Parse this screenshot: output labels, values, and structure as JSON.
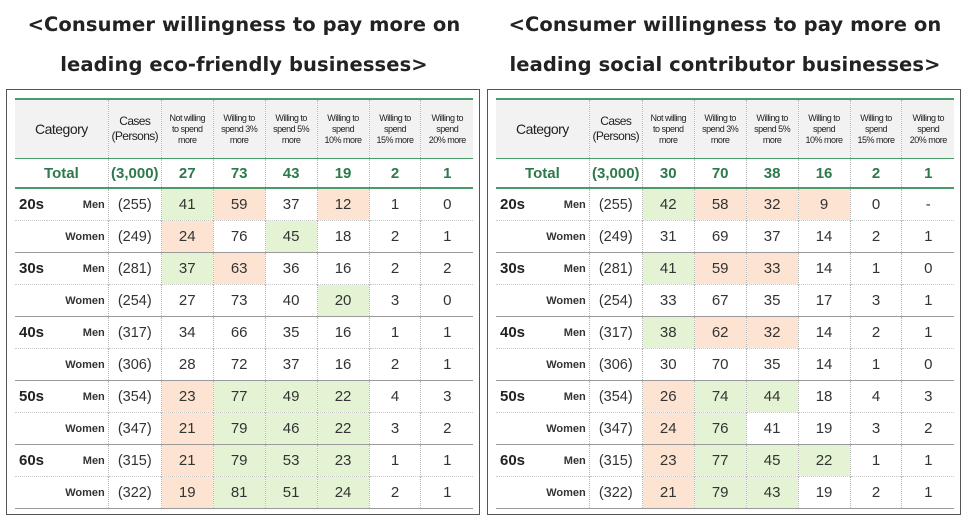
{
  "left": {
    "title_line1": "<Consumer willingness to pay more on",
    "title_line2": "leading eco-friendly businesses>",
    "headers": {
      "category": "Category",
      "cases_1": "Cases",
      "cases_2": "(Persons)",
      "col1": [
        "Not willing",
        "to spend",
        "more"
      ],
      "col2": [
        "Willing to",
        "spend 3%",
        "more"
      ],
      "col3": [
        "Willing to",
        "spend 5%",
        "more"
      ],
      "col4": [
        "Willing to",
        "spend",
        "10% more"
      ],
      "col5": [
        "Willing to",
        "spend",
        "15% more"
      ],
      "col6": [
        "Willing to",
        "spend",
        "20% more"
      ]
    },
    "total": {
      "label": "Total",
      "cases": "(3,000)",
      "values": [
        "27",
        "73",
        "43",
        "19",
        "2",
        "1"
      ]
    },
    "rows": [
      {
        "age": "20s",
        "sex": "Men",
        "cases": "(255)",
        "values": [
          "41",
          "59",
          "37",
          "12",
          "1",
          "0"
        ],
        "hl": [
          "g",
          "o",
          "",
          "o",
          "",
          ""
        ]
      },
      {
        "age": "",
        "sex": "Women",
        "cases": "(249)",
        "values": [
          "24",
          "76",
          "45",
          "18",
          "2",
          "1"
        ],
        "hl": [
          "o",
          "",
          "g",
          "",
          "",
          ""
        ]
      },
      {
        "age": "30s",
        "sex": "Men",
        "cases": "(281)",
        "values": [
          "37",
          "63",
          "36",
          "16",
          "2",
          "2"
        ],
        "hl": [
          "g",
          "o",
          "",
          "",
          "",
          ""
        ]
      },
      {
        "age": "",
        "sex": "Women",
        "cases": "(254)",
        "values": [
          "27",
          "73",
          "40",
          "20",
          "3",
          "0"
        ],
        "hl": [
          "",
          "",
          "",
          "g",
          "",
          ""
        ]
      },
      {
        "age": "40s",
        "sex": "Men",
        "cases": "(317)",
        "values": [
          "34",
          "66",
          "35",
          "16",
          "1",
          "1"
        ],
        "hl": [
          "",
          "",
          "",
          "",
          "",
          ""
        ]
      },
      {
        "age": "",
        "sex": "Women",
        "cases": "(306)",
        "values": [
          "28",
          "72",
          "37",
          "16",
          "2",
          "1"
        ],
        "hl": [
          "",
          "",
          "",
          "",
          "",
          ""
        ]
      },
      {
        "age": "50s",
        "sex": "Men",
        "cases": "(354)",
        "values": [
          "23",
          "77",
          "49",
          "22",
          "4",
          "3"
        ],
        "hl": [
          "o",
          "g",
          "g",
          "g",
          "",
          ""
        ]
      },
      {
        "age": "",
        "sex": "Women",
        "cases": "(347)",
        "values": [
          "21",
          "79",
          "46",
          "22",
          "3",
          "2"
        ],
        "hl": [
          "o",
          "g",
          "g",
          "g",
          "",
          ""
        ]
      },
      {
        "age": "60s",
        "sex": "Men",
        "cases": "(315)",
        "values": [
          "21",
          "79",
          "53",
          "23",
          "1",
          "1"
        ],
        "hl": [
          "o",
          "g",
          "g",
          "g",
          "",
          ""
        ]
      },
      {
        "age": "",
        "sex": "Women",
        "cases": "(322)",
        "values": [
          "19",
          "81",
          "51",
          "24",
          "2",
          "1"
        ],
        "hl": [
          "o",
          "g",
          "g",
          "g",
          "",
          ""
        ]
      }
    ]
  },
  "right": {
    "title_line1": "<Consumer willingness to pay more on",
    "title_line2": "leading social contributor businesses>",
    "headers": {
      "category": "Category",
      "cases_1": "Cases",
      "cases_2": "(Persons)",
      "col1": [
        "Not willing",
        "to spend",
        "more"
      ],
      "col2": [
        "Willing to",
        "spend 3%",
        "more"
      ],
      "col3": [
        "Willing to",
        "spend 5%",
        "more"
      ],
      "col4": [
        "Willing to",
        "spend",
        "10% more"
      ],
      "col5": [
        "Willing to",
        "spend",
        "15% more"
      ],
      "col6": [
        "Willing to",
        "spend",
        "20% more"
      ]
    },
    "total": {
      "label": "Total",
      "cases": "(3,000)",
      "values": [
        "30",
        "70",
        "38",
        "16",
        "2",
        "1"
      ]
    },
    "rows": [
      {
        "age": "20s",
        "sex": "Men",
        "cases": "(255)",
        "values": [
          "42",
          "58",
          "32",
          "9",
          "0",
          "-"
        ],
        "hl": [
          "g",
          "o",
          "o",
          "o",
          "",
          ""
        ]
      },
      {
        "age": "",
        "sex": "Women",
        "cases": "(249)",
        "values": [
          "31",
          "69",
          "37",
          "14",
          "2",
          "1"
        ],
        "hl": [
          "",
          "",
          "",
          "",
          "",
          ""
        ]
      },
      {
        "age": "30s",
        "sex": "Men",
        "cases": "(281)",
        "values": [
          "41",
          "59",
          "33",
          "14",
          "1",
          "0"
        ],
        "hl": [
          "g",
          "o",
          "o",
          "",
          "",
          ""
        ]
      },
      {
        "age": "",
        "sex": "Women",
        "cases": "(254)",
        "values": [
          "33",
          "67",
          "35",
          "17",
          "3",
          "1"
        ],
        "hl": [
          "",
          "",
          "",
          "",
          "",
          ""
        ]
      },
      {
        "age": "40s",
        "sex": "Men",
        "cases": "(317)",
        "values": [
          "38",
          "62",
          "32",
          "14",
          "2",
          "1"
        ],
        "hl": [
          "g",
          "o",
          "o",
          "",
          "",
          ""
        ]
      },
      {
        "age": "",
        "sex": "Women",
        "cases": "(306)",
        "values": [
          "30",
          "70",
          "35",
          "14",
          "1",
          "0"
        ],
        "hl": [
          "",
          "",
          "",
          "",
          "",
          ""
        ]
      },
      {
        "age": "50s",
        "sex": "Men",
        "cases": "(354)",
        "values": [
          "26",
          "74",
          "44",
          "18",
          "4",
          "3"
        ],
        "hl": [
          "o",
          "g",
          "g",
          "",
          "",
          ""
        ]
      },
      {
        "age": "",
        "sex": "Women",
        "cases": "(347)",
        "values": [
          "24",
          "76",
          "41",
          "19",
          "3",
          "2"
        ],
        "hl": [
          "o",
          "g",
          "",
          "",
          "",
          ""
        ]
      },
      {
        "age": "60s",
        "sex": "Men",
        "cases": "(315)",
        "values": [
          "23",
          "77",
          "45",
          "22",
          "1",
          "1"
        ],
        "hl": [
          "o",
          "g",
          "g",
          "g",
          "",
          ""
        ]
      },
      {
        "age": "",
        "sex": "Women",
        "cases": "(322)",
        "values": [
          "21",
          "79",
          "43",
          "19",
          "2",
          "1"
        ],
        "hl": [
          "o",
          "g",
          "g",
          "",
          "",
          ""
        ]
      }
    ]
  }
}
